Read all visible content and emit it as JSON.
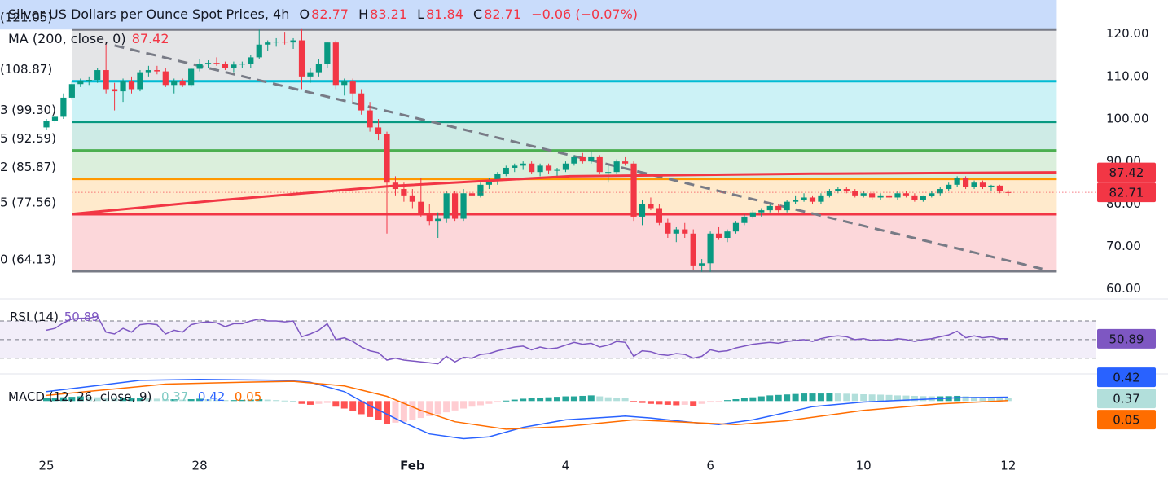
{
  "chart_data": [
    {
      "type": "candlestick",
      "title": "Silver US Dollars per Ounce Spot Prices, 4h",
      "ohlc_labels": [
        "O",
        "H",
        "L",
        "C"
      ],
      "change_label": "−0.06 (−0.07%)",
      "up_color": "#089981",
      "down_color": "#f23645",
      "ylim": [
        58,
        128
      ],
      "yticks": [
        {
          "value": 60,
          "label": "60.00"
        },
        {
          "value": 70,
          "label": "70.00"
        },
        {
          "value": 80,
          "label": "80.00"
        },
        {
          "value": 90,
          "label": "90.00"
        },
        {
          "value": 100,
          "label": "100.00"
        },
        {
          "value": 110,
          "label": "110.00"
        },
        {
          "value": 120,
          "label": "120.00"
        }
      ],
      "xticks": [
        {
          "value": 0,
          "label": "25"
        },
        {
          "value": 18,
          "label": "28"
        },
        {
          "value": 43,
          "label": "Feb"
        },
        {
          "value": 61,
          "label": "4"
        },
        {
          "value": 78,
          "label": "6"
        },
        {
          "value": 96,
          "label": "10"
        },
        {
          "value": 113,
          "label": "12"
        }
      ],
      "ohlc": [
        [
          98,
          100,
          97.5,
          99.5
        ],
        [
          99.5,
          101,
          99,
          100.5
        ],
        [
          100.5,
          106,
          100,
          105
        ],
        [
          105,
          109,
          104.5,
          108.2
        ],
        [
          108.2,
          109.5,
          107.5,
          109
        ],
        [
          109,
          110,
          108,
          109.2
        ],
        [
          109.2,
          112,
          108.5,
          111.5
        ],
        [
          111.5,
          118,
          106,
          107
        ],
        [
          107,
          108.5,
          102,
          106.5
        ],
        [
          106.5,
          109.5,
          104,
          108.8
        ],
        [
          108.8,
          110,
          106,
          107
        ],
        [
          107,
          111.5,
          106.5,
          111
        ],
        [
          111,
          112.5,
          110,
          111.5
        ],
        [
          111.5,
          112.5,
          110.5,
          111.2
        ],
        [
          111.2,
          112,
          107.5,
          108
        ],
        [
          108,
          109.5,
          106,
          109
        ],
        [
          109,
          109.5,
          107.5,
          108
        ],
        [
          108,
          112,
          107.5,
          111.8
        ],
        [
          111.8,
          114,
          111.2,
          113
        ],
        [
          113,
          113.8,
          112,
          113.2
        ],
        [
          113.2,
          114.5,
          112.5,
          113
        ],
        [
          113,
          113.5,
          111.5,
          112
        ],
        [
          112,
          113.5,
          111,
          112.8
        ],
        [
          112.8,
          113.5,
          112,
          113
        ],
        [
          113,
          115,
          112,
          114.5
        ],
        [
          114.5,
          121,
          114,
          117.5
        ],
        [
          117.5,
          118.5,
          116,
          118
        ],
        [
          118,
          119,
          117,
          118.2
        ],
        [
          118.2,
          120.5,
          117.5,
          118
        ],
        [
          118,
          119,
          116.5,
          118.5
        ],
        [
          118.5,
          121.3,
          107,
          110
        ],
        [
          110,
          112,
          108.5,
          111
        ],
        [
          111,
          114,
          110,
          113
        ],
        [
          113,
          118,
          112,
          118
        ],
        [
          118,
          118.5,
          107,
          108
        ],
        [
          108,
          109.5,
          105.5,
          108.8
        ],
        [
          108.8,
          109.5,
          104,
          106
        ],
        [
          106,
          107,
          101,
          102
        ],
        [
          102,
          104,
          97,
          98
        ],
        [
          98,
          100,
          95,
          96.5
        ],
        [
          96.5,
          97,
          73,
          85
        ],
        [
          85,
          86.5,
          82,
          83.5
        ],
        [
          83.5,
          85,
          80.5,
          82
        ],
        [
          82,
          83.5,
          79,
          80.5
        ],
        [
          80.5,
          86,
          77,
          77.5
        ],
        [
          77.5,
          80,
          75,
          76
        ],
        [
          76,
          78,
          72,
          76.5
        ],
        [
          76.5,
          83,
          75.5,
          82.5
        ],
        [
          82.5,
          83,
          76,
          76.5
        ],
        [
          76.5,
          83.5,
          76,
          82.5
        ],
        [
          82.5,
          84,
          81,
          82
        ],
        [
          82,
          85,
          81.5,
          84.5
        ],
        [
          84.5,
          86,
          83.5,
          85.5
        ],
        [
          85.5,
          87.5,
          84.5,
          87
        ],
        [
          87,
          89,
          86.5,
          88.5
        ],
        [
          88.5,
          89.5,
          87.5,
          89
        ],
        [
          89,
          90,
          88,
          89.5
        ],
        [
          89.5,
          90,
          87,
          87.5
        ],
        [
          87.5,
          89.5,
          86.5,
          89
        ],
        [
          89,
          89.5,
          87,
          87.8
        ],
        [
          87.8,
          88.5,
          86.5,
          88
        ],
        [
          88,
          90,
          87.5,
          89.5
        ],
        [
          89.5,
          91.5,
          89,
          91
        ],
        [
          91,
          92,
          89.5,
          90
        ],
        [
          90,
          92.5,
          89.5,
          91
        ],
        [
          91,
          91.5,
          87,
          87.5
        ],
        [
          87.5,
          89,
          85,
          87.5
        ],
        [
          87.5,
          90.5,
          87,
          90
        ],
        [
          90,
          91,
          89,
          89.5
        ],
        [
          89.5,
          90,
          76,
          77
        ],
        [
          77,
          81,
          75,
          80
        ],
        [
          80,
          81.5,
          78.5,
          79
        ],
        [
          79,
          80,
          75,
          75.5
        ],
        [
          75.5,
          76.5,
          72,
          73
        ],
        [
          73,
          74.5,
          71,
          74
        ],
        [
          74,
          75.5,
          72,
          73
        ],
        [
          73,
          74,
          64.5,
          65.5
        ],
        [
          65.5,
          67,
          64,
          66
        ],
        [
          66,
          73.5,
          64,
          73
        ],
        [
          73,
          74.5,
          71.5,
          72
        ],
        [
          72,
          74,
          71,
          73.5
        ],
        [
          73.5,
          76,
          73,
          75.5
        ],
        [
          75.5,
          77.5,
          75,
          77
        ],
        [
          77,
          78.5,
          76.5,
          78
        ],
        [
          78,
          79,
          77,
          78.5
        ],
        [
          78.5,
          80,
          78,
          79.5
        ],
        [
          79.5,
          80,
          78,
          78.5
        ],
        [
          78.5,
          81,
          78,
          80.5
        ],
        [
          80.5,
          82,
          80,
          81
        ],
        [
          81,
          82.5,
          80.5,
          81.5
        ],
        [
          81.5,
          82,
          80,
          80.5
        ],
        [
          80.5,
          82.5,
          80,
          82
        ],
        [
          82,
          83.5,
          81.5,
          83
        ],
        [
          83,
          84,
          82.5,
          83.5
        ],
        [
          83.5,
          84,
          82.5,
          83
        ],
        [
          83,
          83.5,
          81.5,
          82
        ],
        [
          82,
          83,
          81.5,
          82.5
        ],
        [
          82.5,
          83,
          81,
          81.5
        ],
        [
          81.5,
          82.5,
          81,
          82
        ],
        [
          82,
          82.5,
          81,
          81.5
        ],
        [
          81.5,
          83,
          81,
          82.5
        ],
        [
          82.5,
          83,
          81.5,
          82
        ],
        [
          82,
          82.5,
          80.5,
          81
        ],
        [
          81,
          82,
          80.5,
          81.8
        ],
        [
          81.8,
          83,
          81.5,
          82.5
        ],
        [
          82.5,
          84,
          82,
          83.5
        ],
        [
          83.5,
          85,
          83,
          84.5
        ],
        [
          84.5,
          86.5,
          84,
          86
        ],
        [
          86,
          86.5,
          83.5,
          84
        ],
        [
          84,
          85.5,
          83.5,
          85
        ],
        [
          85,
          85.5,
          83.5,
          84
        ],
        [
          84,
          84.5,
          83,
          84.3
        ],
        [
          84.3,
          84.5,
          82.5,
          83
        ],
        [
          82.77,
          83.21,
          81.84,
          82.71
        ]
      ],
      "ma": {
        "name": "MA (200, close, 0)",
        "color": "#f23645",
        "x": [
          3,
          20,
          40.5,
          61.5,
          90,
          118.7
        ],
        "values": [
          77.6,
          80.8,
          84.2,
          86.5,
          87.1,
          87.42
        ]
      },
      "trendline": {
        "color": "#787b86",
        "x": [
          8,
          117
        ],
        "values": [
          117.3,
          64.7
        ]
      },
      "fib": {
        "x": [
          3,
          118.7
        ],
        "above_color": "#c9dcfb",
        "levels": [
          {
            "value": 121.05,
            "label": "(121.05)",
            "color": "#787b86"
          },
          {
            "value": 108.87,
            "label": "(108.87)",
            "color": "#00bcd4"
          },
          {
            "value": 99.3,
            "label": "3 (99.30)",
            "color": "#089981"
          },
          {
            "value": 92.59,
            "label": "5 (92.59)",
            "color": "#4caf50"
          },
          {
            "value": 85.87,
            "label": "2 (85.87)",
            "color": "#ff9800"
          },
          {
            "value": 77.56,
            "label": "5 (77.56)",
            "color": "#f23645"
          },
          {
            "value": 64.13,
            "label": "0 (64.13)",
            "color": "#787b86"
          }
        ]
      }
    },
    {
      "type": "line",
      "name": "RSI (14)",
      "color": "#7e57c2",
      "band_color": "#7e57c2",
      "ylim": [
        14,
        91
      ],
      "levels": [
        70,
        50,
        30
      ],
      "values": [
        60,
        62,
        68,
        72,
        73,
        73,
        75,
        58,
        56,
        62,
        58,
        66,
        67,
        66,
        56,
        60,
        58,
        66,
        68,
        69,
        68,
        64,
        67,
        67,
        70,
        72,
        70,
        70,
        69,
        70,
        53,
        56,
        60,
        67,
        50,
        52,
        48,
        42,
        38,
        36,
        28,
        30,
        28,
        27,
        26,
        25,
        24,
        32,
        26,
        31,
        30,
        34,
        35,
        38,
        40,
        42,
        43,
        39,
        42,
        40,
        41,
        44,
        47,
        45,
        46,
        42,
        44,
        48,
        47,
        32,
        38,
        37,
        34,
        33,
        35,
        34,
        30,
        32,
        39,
        37,
        38,
        41,
        43,
        45,
        46,
        47,
        46,
        48,
        49,
        50,
        48,
        51,
        53,
        54,
        53,
        50,
        51,
        49,
        50,
        49,
        51,
        50,
        48,
        50,
        51,
        53,
        55,
        59,
        52,
        54,
        52,
        53,
        51,
        50.89
      ]
    },
    {
      "type": "macd",
      "name": "MACD (12, 26, close, 9)",
      "ylim": [
        -6.3,
        2.8
      ],
      "macd": {
        "color": "#2962ff",
        "x": [
          0,
          11,
          18,
          28,
          31,
          35,
          38,
          42,
          45,
          49,
          52,
          56,
          61,
          68,
          71,
          76,
          79,
          83,
          87,
          90,
          96,
          107,
          113
        ],
        "values": [
          1.0,
          2.2,
          2.3,
          2.2,
          2.0,
          1.0,
          -0.5,
          -2.3,
          -3.5,
          -4.0,
          -3.8,
          -2.8,
          -2.0,
          -1.6,
          -1.8,
          -2.3,
          -2.5,
          -2.0,
          -1.2,
          -0.6,
          -0.1,
          0.35,
          0.42
        ]
      },
      "signal": {
        "color": "#ff6d00",
        "x": [
          0,
          14,
          23,
          29,
          35,
          40,
          44,
          48,
          54,
          61,
          69,
          76,
          81,
          87,
          96,
          105,
          113
        ],
        "values": [
          0.6,
          1.8,
          2.0,
          2.1,
          1.6,
          0.5,
          -1.0,
          -2.2,
          -3.0,
          -2.7,
          -2.0,
          -2.3,
          -2.5,
          -2.1,
          -1.0,
          -0.3,
          0.05
        ]
      },
      "histogram": {
        "colors": [
          "#26a69a",
          "#b2dfdb",
          "#ffcdd2",
          "#ff5252"
        ],
        "values": [
          0.3,
          0.35,
          0.4,
          0.45,
          0.5,
          0.45,
          0.4,
          0.35,
          0.3,
          0.3,
          0.3,
          0.35,
          0.3,
          0.25,
          0.2,
          0.2,
          0.15,
          0.2,
          0.25,
          0.2,
          0.15,
          0.1,
          0.1,
          0.12,
          0.15,
          0.2,
          0.15,
          0.1,
          0.05,
          0.02,
          -0.3,
          -0.4,
          -0.3,
          -0.2,
          -0.6,
          -0.8,
          -1.1,
          -1.4,
          -1.7,
          -2.0,
          -2.4,
          -2.3,
          -2.2,
          -2.0,
          -1.8,
          -1.6,
          -1.4,
          -1.2,
          -1.0,
          -0.8,
          -0.6,
          -0.45,
          -0.3,
          -0.15,
          0.05,
          0.15,
          0.25,
          0.3,
          0.35,
          0.4,
          0.45,
          0.5,
          0.5,
          0.55,
          0.6,
          0.5,
          0.4,
          0.35,
          0.3,
          -0.1,
          -0.2,
          -0.3,
          -0.35,
          -0.4,
          -0.45,
          -0.4,
          -0.5,
          -0.3,
          -0.15,
          -0.05,
          0.1,
          0.2,
          0.3,
          0.4,
          0.5,
          0.6,
          0.65,
          0.7,
          0.75,
          0.8,
          0.8,
          0.8,
          0.82,
          0.8,
          0.78,
          0.75,
          0.72,
          0.7,
          0.68,
          0.65,
          0.6,
          0.58,
          0.55,
          0.52,
          0.5,
          0.5,
          0.52,
          0.55,
          0.5,
          0.45,
          0.42,
          0.4,
          0.38,
          0.37
        ]
      }
    }
  ]
}
